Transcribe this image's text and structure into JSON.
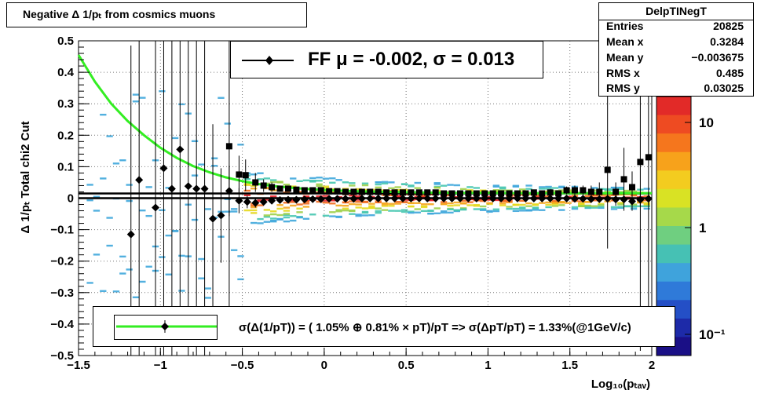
{
  "title": "Negative Δ 1/pₜ from cosmics muons",
  "stats": {
    "name": "DelpTINegT",
    "rows": [
      {
        "key": "Entries",
        "value": "20825"
      },
      {
        "key": "Mean x",
        "value": "0.3284"
      },
      {
        "key": "Mean y",
        "value": "−0.003675"
      },
      {
        "key": "RMS x",
        "value": "0.485"
      },
      {
        "key": "RMS y",
        "value": "0.03025"
      }
    ]
  },
  "legend_top": {
    "text": "FF μ = -0.002, σ =   0.013"
  },
  "legend_fit": {
    "text": "σ(Δ(1/pT)) = ( 1.05% ⊕  0.81% × pT)/pT => σ(ΔpT/pT) =  1.33%(@1GeV/c)"
  },
  "colors": {
    "fit_curve": "#33ee22",
    "markers": "#000000"
  },
  "chart_data": {
    "type": "scatter",
    "xlabel": "Log₁₀(pₜₐᵥ)",
    "ylabel": "Δ 1/pₜ   Total chi2 Cut",
    "xlim": [
      -1.5,
      2.0
    ],
    "ylim": [
      -0.5,
      0.5
    ],
    "x_ticks": [
      "−1.5",
      "−1",
      "−0.5",
      "0",
      "0.5",
      "1",
      "1.5",
      "2"
    ],
    "y_ticks": [
      "−0.5",
      "−0.4",
      "−0.3",
      "−0.2",
      "−0.1",
      "0",
      "0.1",
      "0.2",
      "0.3",
      "0.4",
      "0.5"
    ],
    "grid": true,
    "z_scale": "log",
    "z_ticks": [
      "10⁻¹",
      "1",
      "10"
    ],
    "horizontal_lines": [
      0.015,
      0.0
    ],
    "series": [
      {
        "marker": "square",
        "x": [
          -0.58,
          -0.52,
          -0.48,
          -0.42,
          -0.37,
          -0.32,
          -0.27,
          -0.22,
          -0.17,
          -0.12,
          -0.07,
          -0.02,
          0.03,
          0.08,
          0.13,
          0.18,
          0.23,
          0.28,
          0.33,
          0.38,
          0.43,
          0.48,
          0.53,
          0.58,
          0.63,
          0.68,
          0.73,
          0.78,
          0.83,
          0.88,
          0.93,
          0.98,
          1.03,
          1.08,
          1.13,
          1.18,
          1.23,
          1.28,
          1.33,
          1.38,
          1.43,
          1.48,
          1.53,
          1.58,
          1.63,
          1.68,
          1.73,
          1.78,
          1.83,
          1.88,
          1.93,
          1.98
        ],
        "y": [
          0.165,
          0.075,
          0.073,
          0.05,
          0.04,
          0.035,
          0.03,
          0.03,
          0.027,
          0.025,
          0.025,
          0.025,
          0.022,
          0.022,
          0.02,
          0.02,
          0.02,
          0.02,
          0.02,
          0.018,
          0.018,
          0.018,
          0.018,
          0.018,
          0.018,
          0.018,
          0.015,
          0.015,
          0.015,
          0.015,
          0.015,
          0.015,
          0.015,
          0.015,
          0.015,
          0.015,
          0.015,
          0.018,
          0.015,
          0.018,
          0.015,
          0.025,
          0.025,
          0.025,
          0.02,
          0.02,
          0.09,
          0.02,
          0.06,
          0.035,
          0.115,
          0.13
        ],
        "yerr": [
          0.6,
          0.06,
          0.05,
          0.03,
          0.02,
          0.015,
          0.01,
          0.01,
          0.008,
          0.006,
          0.005,
          0.005,
          0.004,
          0.004,
          0.004,
          0.004,
          0.004,
          0.004,
          0.004,
          0.004,
          0.004,
          0.004,
          0.004,
          0.004,
          0.004,
          0.004,
          0.004,
          0.004,
          0.004,
          0.005,
          0.005,
          0.005,
          0.005,
          0.005,
          0.006,
          0.006,
          0.007,
          0.008,
          0.008,
          0.01,
          0.01,
          0.012,
          0.015,
          0.015,
          0.02,
          0.03,
          0.25,
          0.03,
          0.1,
          0.05,
          0.6,
          0.6
        ]
      },
      {
        "marker": "diamond",
        "x": [
          -1.18,
          -1.13,
          -1.03,
          -0.98,
          -0.93,
          -0.88,
          -0.83,
          -0.78,
          -0.73,
          -0.68,
          -0.63,
          -0.58,
          -0.52,
          -0.47,
          -0.42,
          -0.37,
          -0.32,
          -0.27,
          -0.22,
          -0.17,
          -0.12,
          -0.07,
          -0.02,
          0.03,
          0.08,
          0.13,
          0.18,
          0.23,
          0.28,
          0.33,
          0.38,
          0.43,
          0.48,
          0.53,
          0.58,
          0.63,
          0.68,
          0.73,
          0.78,
          0.83,
          0.88,
          0.93,
          0.98,
          1.03,
          1.08,
          1.13,
          1.18,
          1.23,
          1.28,
          1.33,
          1.38,
          1.43,
          1.48,
          1.53,
          1.58,
          1.63,
          1.68,
          1.73,
          1.78,
          1.83,
          1.88,
          1.93,
          1.98
        ],
        "y": [
          -0.115,
          0.058,
          -0.03,
          0.095,
          0.03,
          0.155,
          0.038,
          0.03,
          0.03,
          -0.065,
          -0.055,
          0.023,
          -0.008,
          -0.012,
          -0.015,
          -0.012,
          -0.008,
          -0.006,
          -0.005,
          -0.005,
          -0.004,
          -0.003,
          -0.003,
          -0.002,
          -0.002,
          -0.002,
          -0.002,
          -0.001,
          -0.001,
          -0.001,
          -0.001,
          -0.001,
          -0.001,
          -0.001,
          -0.001,
          -0.001,
          -0.001,
          -0.001,
          -0.001,
          -0.001,
          -0.001,
          -0.001,
          -0.001,
          -0.001,
          -0.001,
          -0.001,
          -0.001,
          -0.001,
          -0.001,
          -0.001,
          -0.001,
          -0.001,
          -0.001,
          -0.002,
          -0.002,
          -0.003,
          -0.003,
          -0.002,
          -0.004,
          -0.004,
          -0.01,
          -0.005,
          -0.002
        ],
        "yerr": [
          0.6,
          0.6,
          0.6,
          0.6,
          0.6,
          0.6,
          0.6,
          0.6,
          0.6,
          0.3,
          0.15,
          0.08,
          0.04,
          0.02,
          0.015,
          0.01,
          0.008,
          0.006,
          0.005,
          0.004,
          0.004,
          0.004,
          0.004,
          0.004,
          0.004,
          0.004,
          0.004,
          0.004,
          0.004,
          0.004,
          0.004,
          0.004,
          0.004,
          0.004,
          0.004,
          0.004,
          0.004,
          0.004,
          0.004,
          0.004,
          0.004,
          0.004,
          0.004,
          0.004,
          0.004,
          0.004,
          0.004,
          0.004,
          0.004,
          0.004,
          0.004,
          0.005,
          0.005,
          0.006,
          0.007,
          0.008,
          0.01,
          0.01,
          0.02,
          0.02,
          0.03,
          0.02,
          0.02
        ]
      }
    ],
    "fit_curve": {
      "x": [
        -1.5,
        -1.4,
        -1.3,
        -1.2,
        -1.1,
        -1.0,
        -0.9,
        -0.8,
        -0.7,
        -0.6,
        -0.5,
        -0.4,
        -0.3,
        -0.2,
        -0.1,
        0.0,
        0.2,
        0.4,
        0.6,
        0.8,
        1.0,
        1.2,
        1.4,
        1.6,
        1.8,
        2.0
      ],
      "y": [
        0.455,
        0.37,
        0.3,
        0.245,
        0.2,
        0.16,
        0.128,
        0.102,
        0.082,
        0.066,
        0.054,
        0.045,
        0.038,
        0.033,
        0.029,
        0.026,
        0.022,
        0.02,
        0.018,
        0.017,
        0.017,
        0.016,
        0.016,
        0.016,
        0.016,
        0.016
      ]
    }
  }
}
